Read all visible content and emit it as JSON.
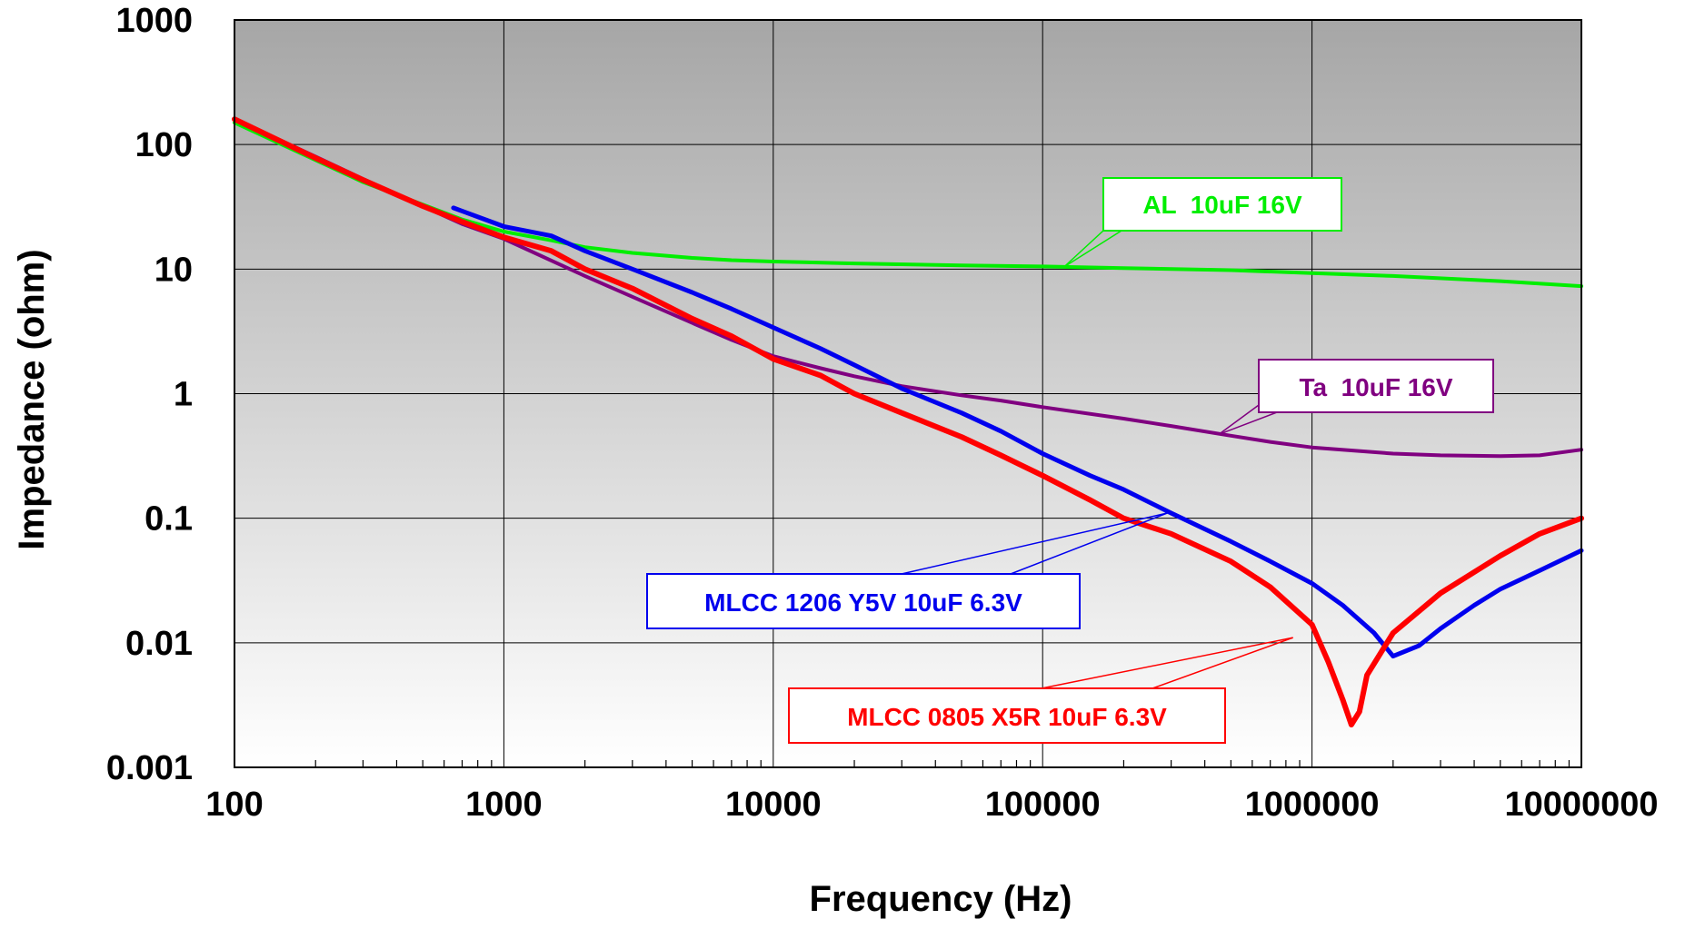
{
  "chart_data": {
    "type": "line",
    "xlabel": "Frequency  (Hz)",
    "ylabel": "Impedance (ohm)",
    "x_scale": "log",
    "y_scale": "log",
    "xlim": [
      100,
      10000000
    ],
    "ylim": [
      0.001,
      1000
    ],
    "grid": true,
    "x_ticks": [
      "100",
      "1000",
      "10000",
      "100000",
      "1000000",
      "10000000"
    ],
    "y_ticks": [
      "1000",
      "100",
      "10",
      "1",
      "0.1",
      "0.01",
      "0.001"
    ],
    "series": [
      {
        "name": "AL  10uF 16V",
        "color": "#00ee00",
        "points": [
          [
            100,
            150
          ],
          [
            200,
            75
          ],
          [
            300,
            50
          ],
          [
            500,
            33
          ],
          [
            700,
            25
          ],
          [
            1000,
            20
          ],
          [
            1500,
            17
          ],
          [
            2000,
            15
          ],
          [
            3000,
            13.5
          ],
          [
            5000,
            12.3
          ],
          [
            7000,
            11.8
          ],
          [
            10000,
            11.5
          ],
          [
            20000,
            11.1
          ],
          [
            50000,
            10.7
          ],
          [
            100000,
            10.5
          ],
          [
            200000,
            10.2
          ],
          [
            500000,
            9.8
          ],
          [
            1000000,
            9.3
          ],
          [
            2000000,
            8.8
          ],
          [
            5000000,
            8.0
          ],
          [
            10000000,
            7.3
          ]
        ]
      },
      {
        "name": "Ta  10uF 16V",
        "color": "#800080",
        "points": [
          [
            100,
            160
          ],
          [
            200,
            80
          ],
          [
            300,
            53
          ],
          [
            500,
            32
          ],
          [
            700,
            23
          ],
          [
            1000,
            17.5
          ],
          [
            2000,
            8.8
          ],
          [
            3000,
            6
          ],
          [
            5000,
            3.7
          ],
          [
            7000,
            2.7
          ],
          [
            10000,
            2.0
          ],
          [
            15000,
            1.6
          ],
          [
            20000,
            1.38
          ],
          [
            30000,
            1.15
          ],
          [
            50000,
            0.97
          ],
          [
            70000,
            0.88
          ],
          [
            100000,
            0.78
          ],
          [
            200000,
            0.63
          ],
          [
            300000,
            0.55
          ],
          [
            500000,
            0.46
          ],
          [
            700000,
            0.41
          ],
          [
            1000000,
            0.37
          ],
          [
            2000000,
            0.33
          ],
          [
            3000000,
            0.32
          ],
          [
            5000000,
            0.315
          ],
          [
            7000000,
            0.32
          ],
          [
            10000000,
            0.355
          ]
        ]
      },
      {
        "name": "MLCC 1206 Y5V 10uF 6.3V",
        "color": "#0000ee",
        "points": [
          [
            650,
            31
          ],
          [
            1000,
            22
          ],
          [
            1500,
            18.5
          ],
          [
            2000,
            14
          ],
          [
            3000,
            10
          ],
          [
            5000,
            6.5
          ],
          [
            7000,
            4.8
          ],
          [
            10000,
            3.4
          ],
          [
            15000,
            2.3
          ],
          [
            20000,
            1.7
          ],
          [
            30000,
            1.1
          ],
          [
            50000,
            0.7
          ],
          [
            70000,
            0.5
          ],
          [
            100000,
            0.33
          ],
          [
            150000,
            0.22
          ],
          [
            200000,
            0.17
          ],
          [
            300000,
            0.11
          ],
          [
            500000,
            0.065
          ],
          [
            700000,
            0.045
          ],
          [
            1000000,
            0.03
          ],
          [
            1300000,
            0.02
          ],
          [
            1700000,
            0.012
          ],
          [
            2000000,
            0.0078
          ],
          [
            2500000,
            0.0095
          ],
          [
            3000000,
            0.013
          ],
          [
            4000000,
            0.02
          ],
          [
            5000000,
            0.027
          ],
          [
            7000000,
            0.038
          ],
          [
            10000000,
            0.055
          ]
        ]
      },
      {
        "name": "MLCC 0805 X5R 10uF 6.3V",
        "color": "#ff0000",
        "points": [
          [
            100,
            160
          ],
          [
            200,
            78
          ],
          [
            300,
            52
          ],
          [
            500,
            32
          ],
          [
            700,
            24
          ],
          [
            1000,
            18
          ],
          [
            1500,
            14
          ],
          [
            2000,
            10
          ],
          [
            3000,
            7
          ],
          [
            5000,
            4
          ],
          [
            7000,
            2.9
          ],
          [
            10000,
            1.9
          ],
          [
            15000,
            1.4
          ],
          [
            20000,
            1.0
          ],
          [
            30000,
            0.7
          ],
          [
            50000,
            0.45
          ],
          [
            70000,
            0.32
          ],
          [
            100000,
            0.22
          ],
          [
            150000,
            0.14
          ],
          [
            200000,
            0.1
          ],
          [
            300000,
            0.075
          ],
          [
            500000,
            0.045
          ],
          [
            700000,
            0.028
          ],
          [
            1000000,
            0.014
          ],
          [
            1150000,
            0.007
          ],
          [
            1300000,
            0.0035
          ],
          [
            1400000,
            0.0022
          ],
          [
            1500000,
            0.0028
          ],
          [
            1600000,
            0.0055
          ],
          [
            2000000,
            0.012
          ],
          [
            3000000,
            0.025
          ],
          [
            5000000,
            0.05
          ],
          [
            7000000,
            0.075
          ],
          [
            10000000,
            0.1
          ]
        ]
      }
    ],
    "annotations": [
      {
        "text": "AL  10uF 16V",
        "color": "#00ee00",
        "anchors": [
          [
            120000,
            10.4
          ]
        ]
      },
      {
        "text": "Ta  10uF 16V",
        "color": "#800080",
        "anchors": [
          [
            450000,
            0.47
          ]
        ]
      },
      {
        "text": "MLCC 1206 Y5V 10uF 6.3V",
        "color": "#0000ee",
        "anchors": [
          [
            290000,
            0.11
          ],
          [
            290000,
            0.11
          ]
        ]
      },
      {
        "text": "MLCC 0805 X5R 10uF 6.3V",
        "color": "#ff0000",
        "anchors": [
          [
            850000,
            0.011
          ],
          [
            850000,
            0.011
          ]
        ]
      }
    ]
  }
}
